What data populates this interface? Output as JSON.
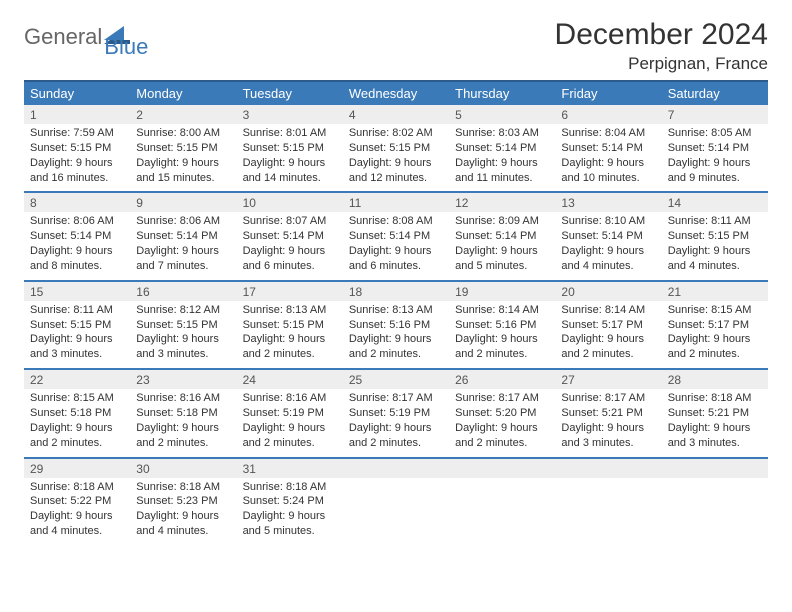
{
  "brand": {
    "word1": "General",
    "word2": "Blue"
  },
  "title": "December 2024",
  "subtitle": "Perpignan, France",
  "colors": {
    "header_bg": "#3b7ab8",
    "header_border": "#2c5a8a",
    "row_divider": "#3b7ab8",
    "daynum_bg": "#eeeeee",
    "text": "#333333",
    "logo_gray": "#666666",
    "logo_blue": "#3b7ab8",
    "page_bg": "#ffffff"
  },
  "weekdays": [
    "Sunday",
    "Monday",
    "Tuesday",
    "Wednesday",
    "Thursday",
    "Friday",
    "Saturday"
  ],
  "weeks": [
    [
      {
        "num": "1",
        "sunrise": "7:59 AM",
        "sunset": "5:15 PM",
        "daylight": "9 hours and 16 minutes."
      },
      {
        "num": "2",
        "sunrise": "8:00 AM",
        "sunset": "5:15 PM",
        "daylight": "9 hours and 15 minutes."
      },
      {
        "num": "3",
        "sunrise": "8:01 AM",
        "sunset": "5:15 PM",
        "daylight": "9 hours and 14 minutes."
      },
      {
        "num": "4",
        "sunrise": "8:02 AM",
        "sunset": "5:15 PM",
        "daylight": "9 hours and 12 minutes."
      },
      {
        "num": "5",
        "sunrise": "8:03 AM",
        "sunset": "5:14 PM",
        "daylight": "9 hours and 11 minutes."
      },
      {
        "num": "6",
        "sunrise": "8:04 AM",
        "sunset": "5:14 PM",
        "daylight": "9 hours and 10 minutes."
      },
      {
        "num": "7",
        "sunrise": "8:05 AM",
        "sunset": "5:14 PM",
        "daylight": "9 hours and 9 minutes."
      }
    ],
    [
      {
        "num": "8",
        "sunrise": "8:06 AM",
        "sunset": "5:14 PM",
        "daylight": "9 hours and 8 minutes."
      },
      {
        "num": "9",
        "sunrise": "8:06 AM",
        "sunset": "5:14 PM",
        "daylight": "9 hours and 7 minutes."
      },
      {
        "num": "10",
        "sunrise": "8:07 AM",
        "sunset": "5:14 PM",
        "daylight": "9 hours and 6 minutes."
      },
      {
        "num": "11",
        "sunrise": "8:08 AM",
        "sunset": "5:14 PM",
        "daylight": "9 hours and 6 minutes."
      },
      {
        "num": "12",
        "sunrise": "8:09 AM",
        "sunset": "5:14 PM",
        "daylight": "9 hours and 5 minutes."
      },
      {
        "num": "13",
        "sunrise": "8:10 AM",
        "sunset": "5:14 PM",
        "daylight": "9 hours and 4 minutes."
      },
      {
        "num": "14",
        "sunrise": "8:11 AM",
        "sunset": "5:15 PM",
        "daylight": "9 hours and 4 minutes."
      }
    ],
    [
      {
        "num": "15",
        "sunrise": "8:11 AM",
        "sunset": "5:15 PM",
        "daylight": "9 hours and 3 minutes."
      },
      {
        "num": "16",
        "sunrise": "8:12 AM",
        "sunset": "5:15 PM",
        "daylight": "9 hours and 3 minutes."
      },
      {
        "num": "17",
        "sunrise": "8:13 AM",
        "sunset": "5:15 PM",
        "daylight": "9 hours and 2 minutes."
      },
      {
        "num": "18",
        "sunrise": "8:13 AM",
        "sunset": "5:16 PM",
        "daylight": "9 hours and 2 minutes."
      },
      {
        "num": "19",
        "sunrise": "8:14 AM",
        "sunset": "5:16 PM",
        "daylight": "9 hours and 2 minutes."
      },
      {
        "num": "20",
        "sunrise": "8:14 AM",
        "sunset": "5:17 PM",
        "daylight": "9 hours and 2 minutes."
      },
      {
        "num": "21",
        "sunrise": "8:15 AM",
        "sunset": "5:17 PM",
        "daylight": "9 hours and 2 minutes."
      }
    ],
    [
      {
        "num": "22",
        "sunrise": "8:15 AM",
        "sunset": "5:18 PM",
        "daylight": "9 hours and 2 minutes."
      },
      {
        "num": "23",
        "sunrise": "8:16 AM",
        "sunset": "5:18 PM",
        "daylight": "9 hours and 2 minutes."
      },
      {
        "num": "24",
        "sunrise": "8:16 AM",
        "sunset": "5:19 PM",
        "daylight": "9 hours and 2 minutes."
      },
      {
        "num": "25",
        "sunrise": "8:17 AM",
        "sunset": "5:19 PM",
        "daylight": "9 hours and 2 minutes."
      },
      {
        "num": "26",
        "sunrise": "8:17 AM",
        "sunset": "5:20 PM",
        "daylight": "9 hours and 2 minutes."
      },
      {
        "num": "27",
        "sunrise": "8:17 AM",
        "sunset": "5:21 PM",
        "daylight": "9 hours and 3 minutes."
      },
      {
        "num": "28",
        "sunrise": "8:18 AM",
        "sunset": "5:21 PM",
        "daylight": "9 hours and 3 minutes."
      }
    ],
    [
      {
        "num": "29",
        "sunrise": "8:18 AM",
        "sunset": "5:22 PM",
        "daylight": "9 hours and 4 minutes."
      },
      {
        "num": "30",
        "sunrise": "8:18 AM",
        "sunset": "5:23 PM",
        "daylight": "9 hours and 4 minutes."
      },
      {
        "num": "31",
        "sunrise": "8:18 AM",
        "sunset": "5:24 PM",
        "daylight": "9 hours and 5 minutes."
      },
      null,
      null,
      null,
      null
    ]
  ],
  "labels": {
    "sunrise": "Sunrise: ",
    "sunset": "Sunset: ",
    "daylight": "Daylight: "
  }
}
